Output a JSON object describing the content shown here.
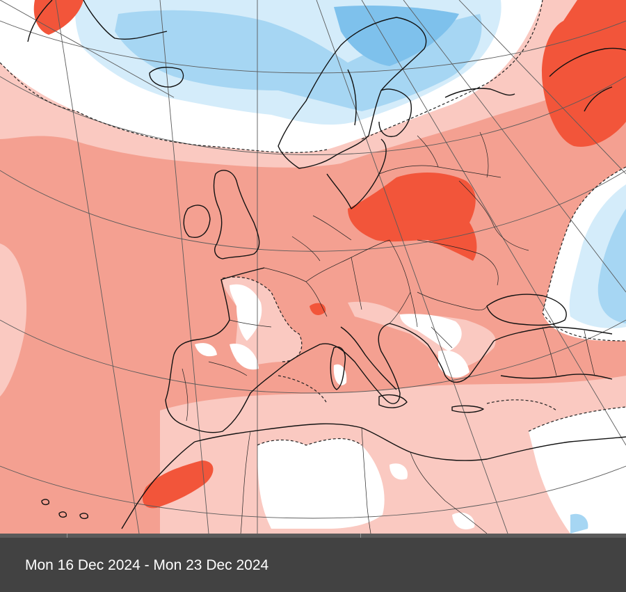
{
  "map": {
    "colors": {
      "strong_warm": "#f2553a",
      "warm": "#f4a091",
      "light_warm": "#fac9c1",
      "neutral": "#ffffff",
      "light_cool": "#d4ecfa",
      "cool": "#a6d6f3",
      "strong_cool": "#7ec1ec"
    }
  },
  "caption": {
    "date_range": "Mon 16 Dec 2024 - Mon 23 Dec 2024"
  }
}
